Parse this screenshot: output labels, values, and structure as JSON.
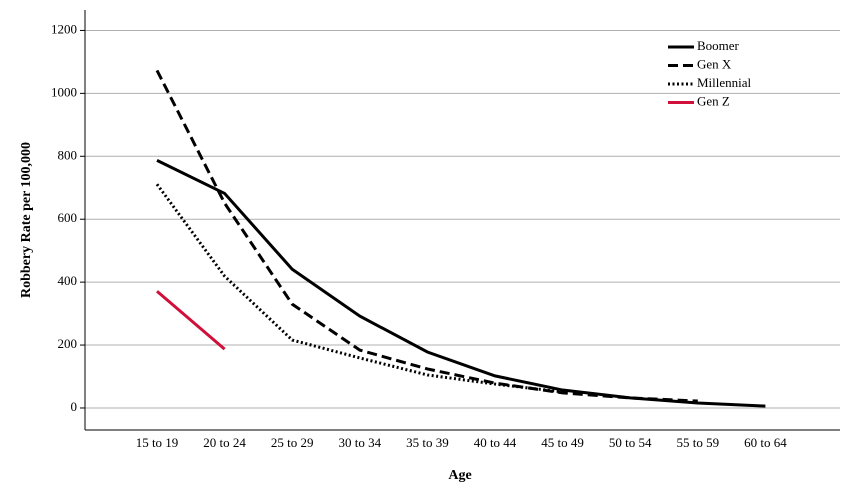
{
  "chart_data": {
    "type": "line",
    "x_label": "Age",
    "y_label": "Robbery Rate per 100,000",
    "categories": [
      "15 to 19",
      "20 to 24",
      "25 to 29",
      "30 to 34",
      "35 to 39",
      "40 to 44",
      "45 to 49",
      "50 to 54",
      "55 to 59",
      "60 to 64"
    ],
    "series": [
      {
        "name": "Boomer",
        "color": "#000000",
        "dash": "solid",
        "values": [
          787,
          682,
          441,
          292,
          178,
          102,
          57,
          32,
          16,
          6
        ]
      },
      {
        "name": "Gen X",
        "color": "#000000",
        "dash": "dashed",
        "values": [
          1073,
          651,
          330,
          184,
          124,
          79,
          48,
          32,
          22,
          null
        ]
      },
      {
        "name": "Millennial",
        "color": "#000000",
        "dash": "dotted",
        "values": [
          711,
          419,
          216,
          159,
          105,
          76,
          51,
          null,
          null,
          null
        ]
      },
      {
        "name": "Gen Z",
        "color": "#d0103a",
        "dash": "solid",
        "values": [
          371,
          187,
          null,
          null,
          null,
          null,
          null,
          null,
          null,
          null
        ]
      }
    ],
    "ylim": [
      -70,
      1265
    ],
    "yticks": [
      0,
      200,
      400,
      600,
      800,
      1000,
      1200
    ],
    "grid": true,
    "legend": "top-right"
  }
}
